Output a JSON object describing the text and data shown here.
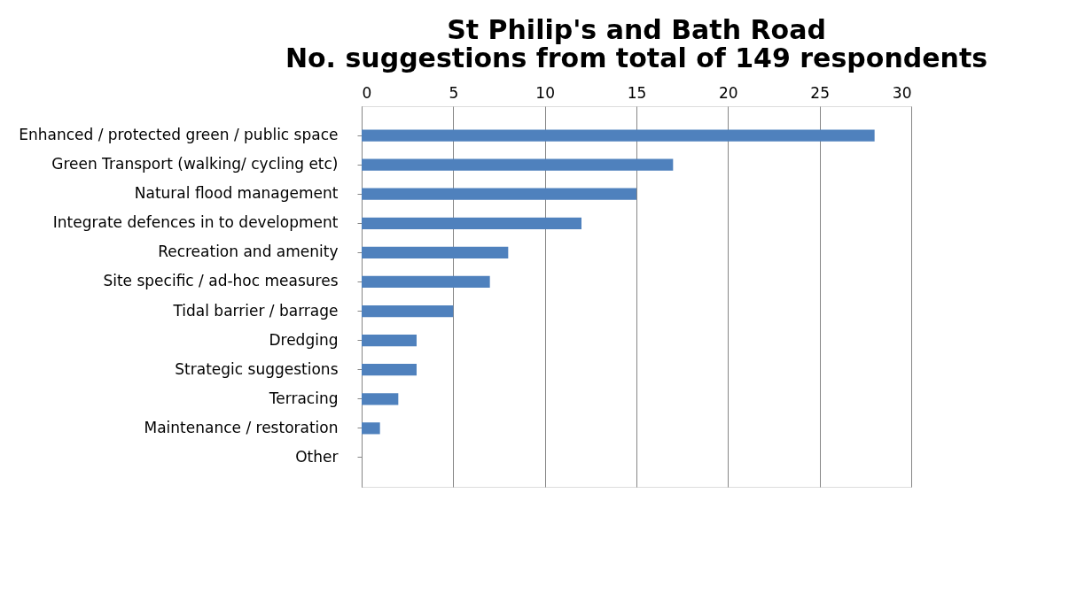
{
  "chart_data": {
    "type": "bar",
    "orientation": "horizontal",
    "title": [
      "St Philip's and Bath Road",
      "No. suggestions from total of 149 respondents"
    ],
    "categories": [
      "Enhanced / protected green / public space",
      "Green Transport (walking/ cycling etc)",
      "Natural flood management",
      "Integrate defences  in to development",
      "Recreation and amenity",
      "Site specific / ad-hoc measures",
      "Tidal barrier / barrage",
      "Dredging",
      "Strategic suggestions",
      "Terracing",
      "Maintenance / restoration",
      "Other"
    ],
    "values": [
      28,
      17,
      15,
      12,
      8,
      7,
      5,
      3,
      3,
      2,
      1,
      0
    ],
    "color": "#4f81bd",
    "xlim": [
      0,
      30
    ],
    "xticks": [
      0,
      5,
      10,
      15,
      20,
      25,
      30
    ],
    "grid": "x"
  }
}
